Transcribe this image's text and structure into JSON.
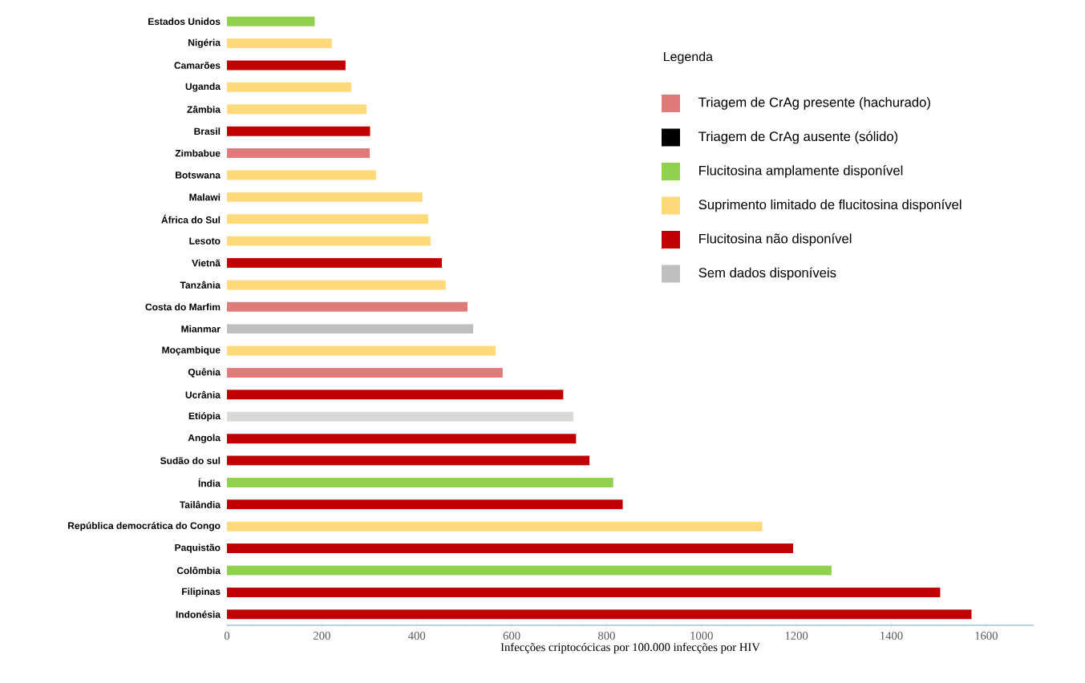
{
  "chart_data": {
    "type": "bar",
    "orientation": "horizontal",
    "xlabel": "Infecções criptocócicas por 100.000 infecções por HIV",
    "legend_title": "Legenda",
    "legend": "top right",
    "grid": false,
    "categories": [
      "Estados Unidos",
      "Nigéria",
      "Camarões",
      "Uganda",
      "Zâmbia",
      "Brasil",
      "Zimbabue",
      "Botswana",
      "Malawi",
      "África do Sul",
      "Lesoto",
      "Vietnã",
      "Tanzânia",
      "Costa do Marfim",
      "Mianmar",
      "Moçambique",
      "Quênia",
      "Ucrânia",
      "Etiópia",
      "Angola",
      "Sudão do sul",
      "Índia",
      "Tailândia",
      "República democrática do Congo",
      "Paquistão",
      "Colômbia",
      "Filipinas",
      "Indonésia"
    ],
    "xlim": [
      0,
      1700
    ],
    "xticks": [
      0,
      200,
      400,
      600,
      800,
      1000,
      1200,
      1400,
      1600
    ],
    "series": [
      {
        "name": "Triagem de CrAg presente (hachurado)",
        "color": "#e07b7b",
        "values": [
          null,
          null,
          null,
          null,
          null,
          null,
          301,
          null,
          null,
          null,
          null,
          null,
          null,
          507,
          null,
          null,
          581,
          null,
          730,
          null,
          null,
          null,
          null,
          null,
          null,
          null,
          null,
          null
        ],
        "colors": [
          null,
          null,
          null,
          null,
          null,
          null,
          "#e07b7b",
          null,
          null,
          null,
          null,
          null,
          null,
          "#e07b7b",
          null,
          null,
          "#e07b7b",
          null,
          "#d9d9d9",
          null,
          null,
          null,
          null,
          null,
          null,
          null,
          null,
          null
        ]
      },
      {
        "name": "Triagem de CrAg ausente (sólido)",
        "color": "#000000",
        "values": [
          null,
          null,
          null,
          null,
          null,
          null,
          null,
          null,
          null,
          null,
          null,
          null,
          null,
          null,
          null,
          null,
          null,
          null,
          null,
          null,
          null,
          null,
          null,
          null,
          null,
          null,
          null,
          null
        ]
      },
      {
        "name": "Flucitosina amplamente disponível",
        "color": "#92d050",
        "values": [
          185,
          null,
          null,
          null,
          null,
          null,
          null,
          null,
          null,
          null,
          null,
          null,
          null,
          null,
          null,
          null,
          null,
          null,
          null,
          null,
          null,
          814,
          null,
          null,
          null,
          1274,
          null,
          null
        ]
      },
      {
        "name": "Suprimento limitado de flucitosina disponível",
        "color": "#ffd97a",
        "values": [
          null,
          221,
          null,
          262,
          294,
          null,
          null,
          314,
          412,
          424,
          429,
          null,
          461,
          null,
          null,
          566,
          null,
          null,
          null,
          null,
          null,
          null,
          null,
          1128,
          null,
          null,
          null,
          null
        ]
      },
      {
        "name": "Flucitosina não disponível",
        "color": "#c00000",
        "values": [
          null,
          null,
          250,
          null,
          null,
          302,
          null,
          null,
          null,
          null,
          null,
          453,
          null,
          null,
          null,
          null,
          null,
          709,
          null,
          736,
          764,
          null,
          834,
          null,
          1193,
          null,
          1503,
          1569
        ]
      },
      {
        "name": "Sem dados disponíveis",
        "color": "#bfbfbf",
        "values": [
          null,
          null,
          null,
          null,
          null,
          null,
          null,
          null,
          null,
          null,
          null,
          null,
          null,
          null,
          519,
          null,
          null,
          null,
          null,
          null,
          null,
          null,
          null,
          null,
          null,
          null,
          null,
          null
        ]
      }
    ]
  }
}
